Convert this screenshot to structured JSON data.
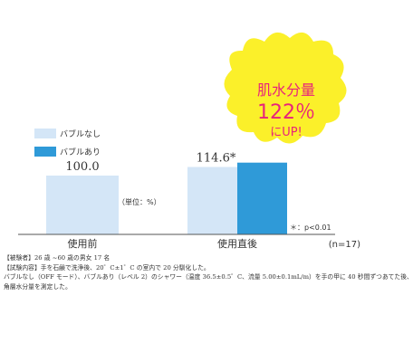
{
  "chart_data": {
    "type": "bar",
    "categories": [
      "使用前",
      "使用直後"
    ],
    "series": [
      {
        "name": "バブルなし",
        "values": [
          100.0,
          114.6
        ]
      },
      {
        "name": "バブルあり",
        "values": [
          null,
          122.0
        ]
      }
    ],
    "data_labels": [
      "100.0",
      "114.6*"
    ],
    "unit_label": "（単位：%）",
    "significance_note": "＊：p<0.01",
    "sample_size": "(n=17)",
    "callout": {
      "line1": "肌水分量",
      "line2": "122％",
      "line3": "にUP!"
    },
    "colors": {
      "series_a": "#d4e6f7",
      "series_b": "#2f9ad8",
      "callout_fill": "#fbf02a",
      "callout_text": "#e8237b"
    },
    "legend_position": "left"
  },
  "notes": [
    "【被験者】26 歳 ~60 歳の男女 17 名",
    "【試験内容】手を石鹸で洗浄後、20゜C±1゜C の室内で 20 分馴化した。",
    "バブルなし（OFF モード）、バブルあり（レベル 2）のシャワー（温度 36.5±0.5゜C、流量 5.00±0.1mL/m）を手の甲に 40 秒間ずつあてた後、",
    "角層水分量を測定した。"
  ]
}
